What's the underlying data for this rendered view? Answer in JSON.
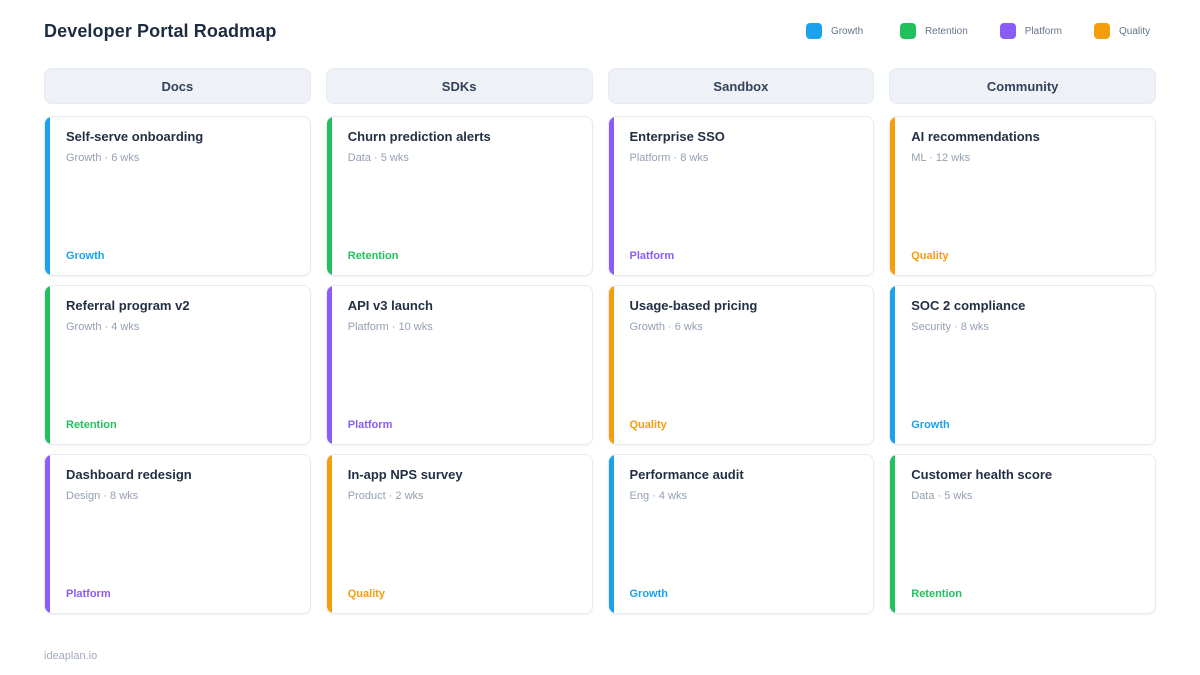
{
  "header": {
    "title": "Developer Portal Roadmap"
  },
  "colors": {
    "Growth": "#1aa3ec",
    "Retention": "#22c15e",
    "Platform": "#8b5cf6",
    "Quality": "#f59e0b"
  },
  "legend": {
    "items": [
      {
        "label": "Growth",
        "color": "#1aa3ec"
      },
      {
        "label": "Retention",
        "color": "#22c15e"
      },
      {
        "label": "Platform",
        "color": "#8b5cf6"
      },
      {
        "label": "Quality",
        "color": "#f59e0b"
      }
    ]
  },
  "board": {
    "columns": [
      {
        "title": "Docs",
        "cards": [
          {
            "title": "Self-serve onboarding",
            "meta": "Growth · 6 wks",
            "tag": "Growth"
          },
          {
            "title": "Referral program v2",
            "meta": "Growth · 4 wks",
            "tag": "Retention"
          },
          {
            "title": "Dashboard redesign",
            "meta": "Design · 8 wks",
            "tag": "Platform"
          }
        ]
      },
      {
        "title": "SDKs",
        "cards": [
          {
            "title": "Churn prediction alerts",
            "meta": "Data · 5 wks",
            "tag": "Retention"
          },
          {
            "title": "API v3 launch",
            "meta": "Platform · 10 wks",
            "tag": "Platform"
          },
          {
            "title": "In-app NPS survey",
            "meta": "Product · 2 wks",
            "tag": "Quality"
          }
        ]
      },
      {
        "title": "Sandbox",
        "cards": [
          {
            "title": "Enterprise SSO",
            "meta": "Platform · 8 wks",
            "tag": "Platform"
          },
          {
            "title": "Usage-based pricing",
            "meta": "Growth · 6 wks",
            "tag": "Quality"
          },
          {
            "title": "Performance audit",
            "meta": "Eng · 4 wks",
            "tag": "Growth"
          }
        ]
      },
      {
        "title": "Community",
        "cards": [
          {
            "title": "AI recommendations",
            "meta": "ML · 12 wks",
            "tag": "Quality"
          },
          {
            "title": "SOC 2 compliance",
            "meta": "Security · 8 wks",
            "tag": "Growth"
          },
          {
            "title": "Customer health score",
            "meta": "Data · 5 wks",
            "tag": "Retention"
          }
        ]
      }
    ]
  },
  "footer": {
    "brand": "ideaplan.io"
  }
}
